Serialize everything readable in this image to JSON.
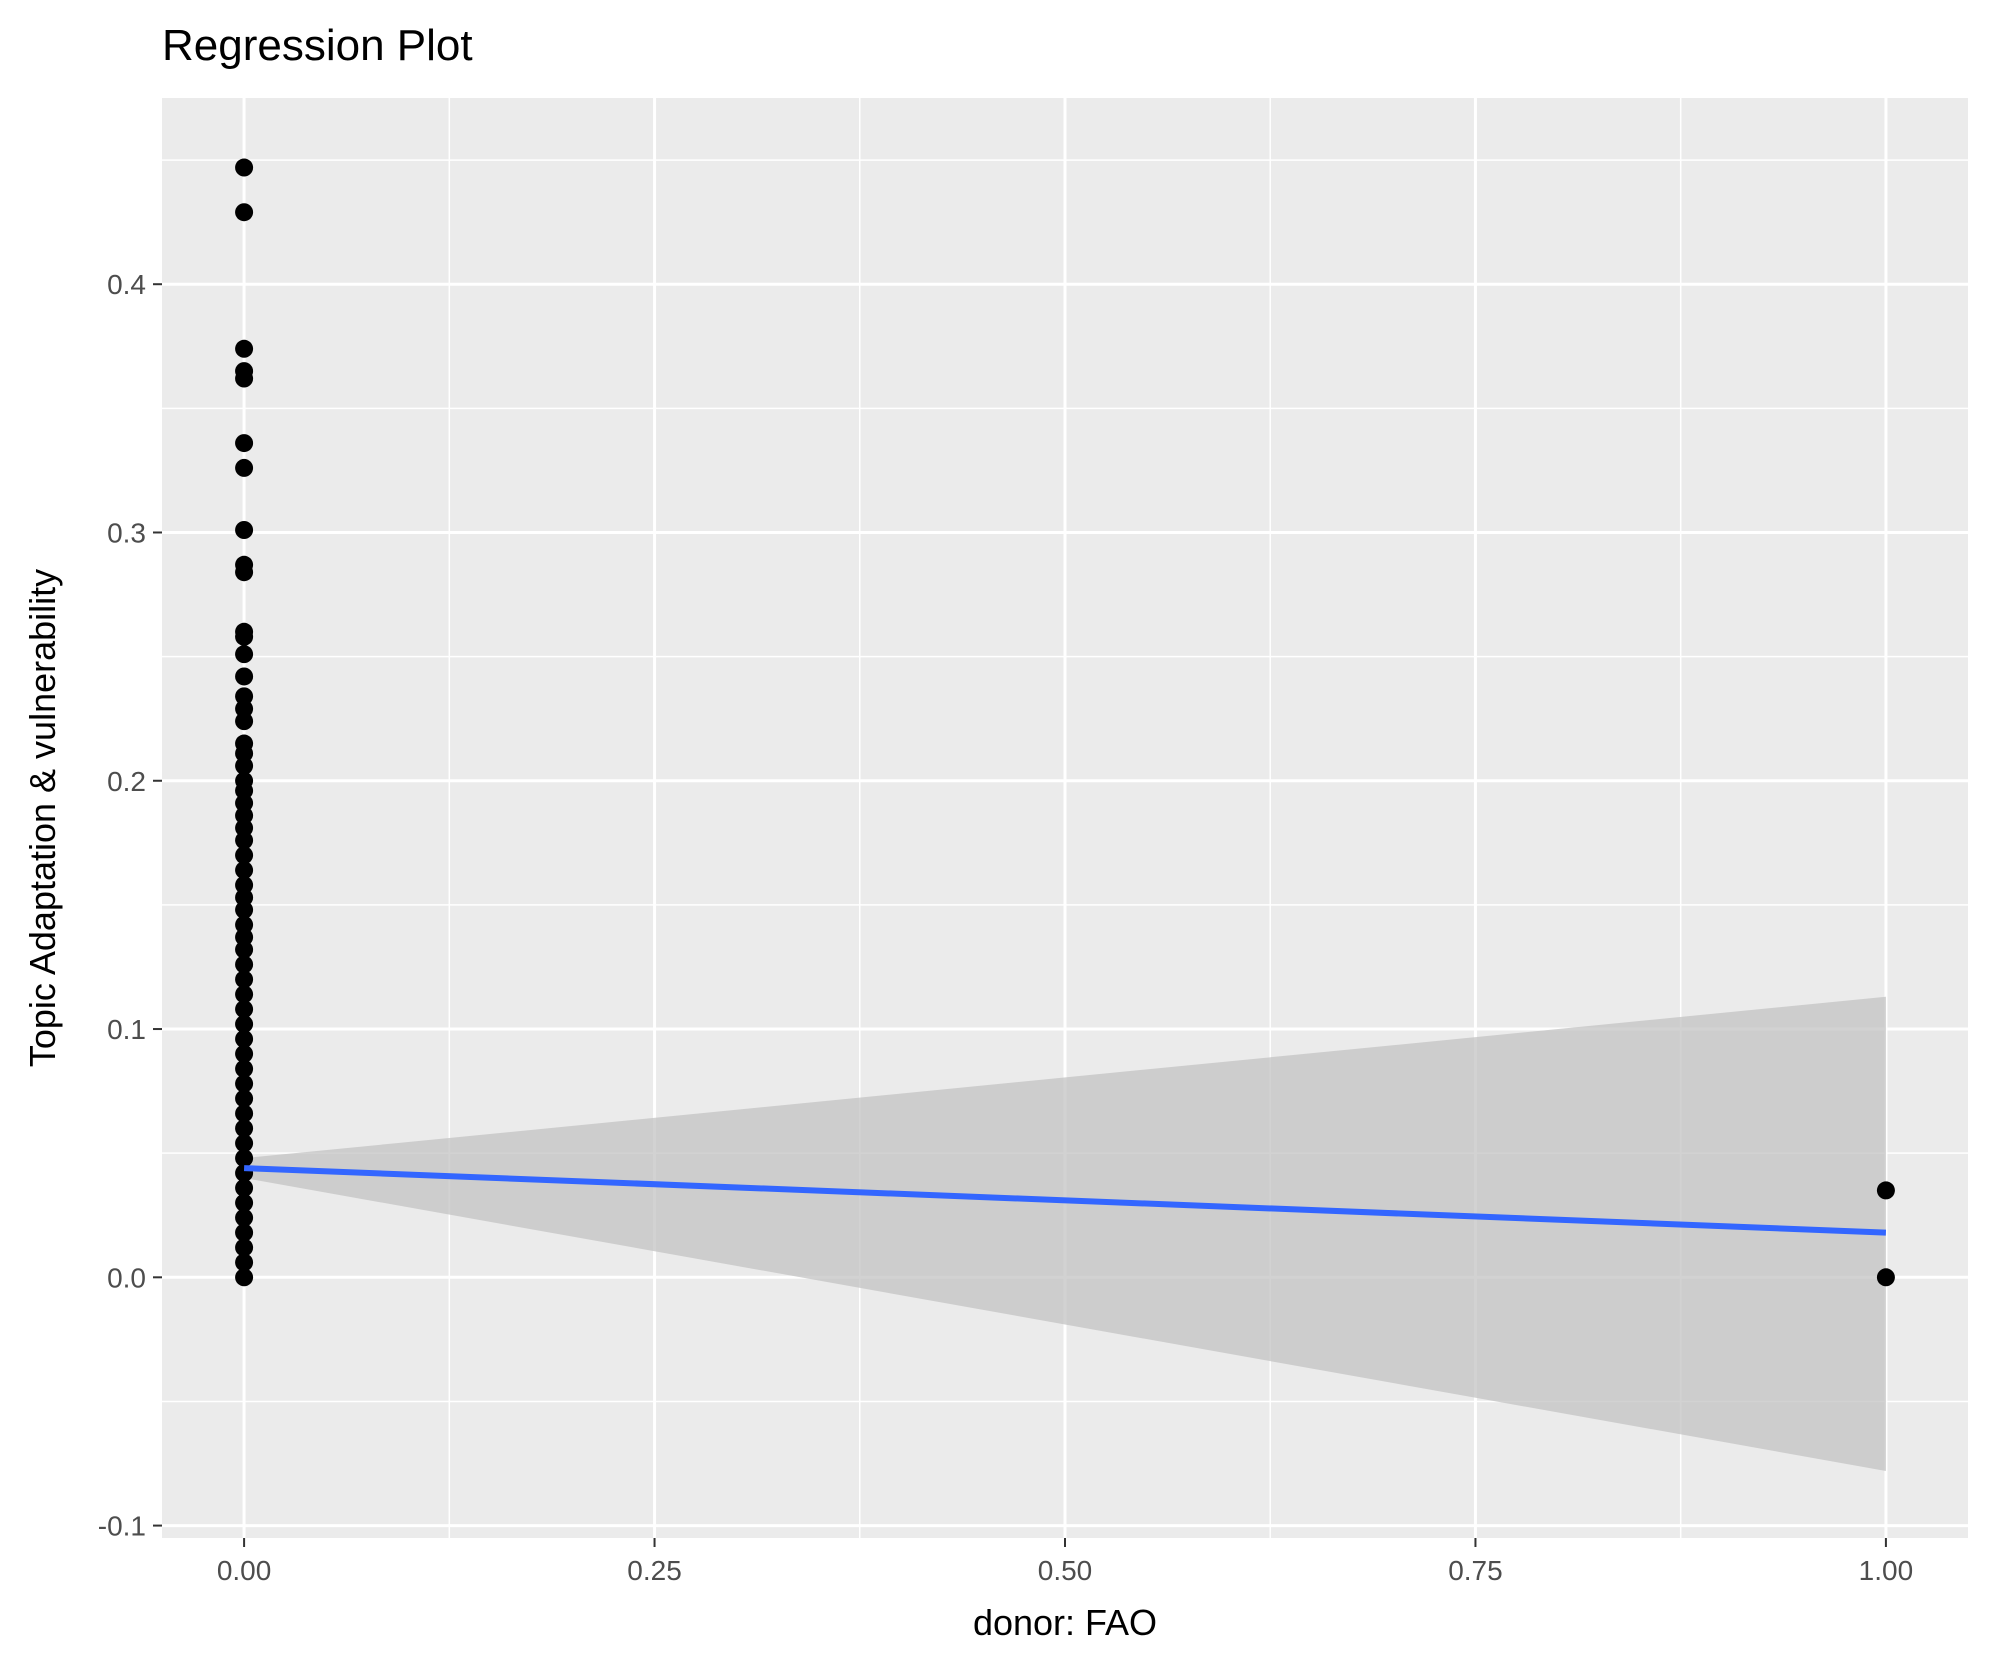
{
  "chart_data": {
    "type": "scatter",
    "title": "Regression Plot",
    "xlabel": "donor: FAO",
    "ylabel": "Topic Adaptation & vulnerability",
    "xlim": [
      -0.05,
      1.05
    ],
    "ylim": [
      -0.105,
      0.475
    ],
    "x_ticks": [
      0,
      0.25,
      0.5,
      0.75,
      1
    ],
    "x_tick_labels": [
      "0.00",
      "0.25",
      "0.50",
      "0.75",
      "1.00"
    ],
    "y_ticks": [
      -0.1,
      0,
      0.1,
      0.2,
      0.3,
      0.4
    ],
    "y_tick_labels": [
      "-0.1",
      "0.0",
      "0.1",
      "0.2",
      "0.3",
      "0.4"
    ],
    "grid": true,
    "legend": "none",
    "colors": {
      "panel": "#ebebeb",
      "grid": "#ffffff",
      "points": "#000000",
      "fit_line": "#3366ff",
      "ribbon": "#c3c3c3"
    },
    "points": [
      {
        "x": 0,
        "y": 0.447
      },
      {
        "x": 0,
        "y": 0.429
      },
      {
        "x": 0,
        "y": 0.374
      },
      {
        "x": 0,
        "y": 0.365
      },
      {
        "x": 0,
        "y": 0.362
      },
      {
        "x": 0,
        "y": 0.336
      },
      {
        "x": 0,
        "y": 0.326
      },
      {
        "x": 0,
        "y": 0.301
      },
      {
        "x": 0,
        "y": 0.287
      },
      {
        "x": 0,
        "y": 0.284
      },
      {
        "x": 0,
        "y": 0.26
      },
      {
        "x": 0,
        "y": 0.258
      },
      {
        "x": 0,
        "y": 0.251
      },
      {
        "x": 0,
        "y": 0.242
      },
      {
        "x": 0,
        "y": 0.234
      },
      {
        "x": 0,
        "y": 0.229
      },
      {
        "x": 0,
        "y": 0.224
      },
      {
        "x": 0,
        "y": 0.215
      },
      {
        "x": 0,
        "y": 0.211
      },
      {
        "x": 0,
        "y": 0.206
      },
      {
        "x": 0,
        "y": 0.2
      },
      {
        "x": 0,
        "y": 0.196
      },
      {
        "x": 0,
        "y": 0.191
      },
      {
        "x": 0,
        "y": 0.186
      },
      {
        "x": 0,
        "y": 0.181
      },
      {
        "x": 0,
        "y": 0.176
      },
      {
        "x": 0,
        "y": 0.17
      },
      {
        "x": 0,
        "y": 0.164
      },
      {
        "x": 0,
        "y": 0.158
      },
      {
        "x": 0,
        "y": 0.153
      },
      {
        "x": 0,
        "y": 0.148
      },
      {
        "x": 0,
        "y": 0.142
      },
      {
        "x": 0,
        "y": 0.137
      },
      {
        "x": 0,
        "y": 0.132
      },
      {
        "x": 0,
        "y": 0.126
      },
      {
        "x": 0,
        "y": 0.12
      },
      {
        "x": 0,
        "y": 0.114
      },
      {
        "x": 0,
        "y": 0.108
      },
      {
        "x": 0,
        "y": 0.102
      },
      {
        "x": 0,
        "y": 0.096
      },
      {
        "x": 0,
        "y": 0.09
      },
      {
        "x": 0,
        "y": 0.084
      },
      {
        "x": 0,
        "y": 0.078
      },
      {
        "x": 0,
        "y": 0.072
      },
      {
        "x": 0,
        "y": 0.066
      },
      {
        "x": 0,
        "y": 0.06
      },
      {
        "x": 0,
        "y": 0.054
      },
      {
        "x": 0,
        "y": 0.048
      },
      {
        "x": 0,
        "y": 0.042
      },
      {
        "x": 0,
        "y": 0.036
      },
      {
        "x": 0,
        "y": 0.03
      },
      {
        "x": 0,
        "y": 0.024
      },
      {
        "x": 0,
        "y": 0.018
      },
      {
        "x": 0,
        "y": 0.012
      },
      {
        "x": 0,
        "y": 0.006
      },
      {
        "x": 0,
        "y": 0.0
      },
      {
        "x": 1,
        "y": 0.035
      },
      {
        "x": 1,
        "y": 0.0
      }
    ],
    "fit": {
      "x": [
        0,
        1
      ],
      "y": [
        0.044,
        0.018
      ],
      "ci_lower": [
        0.04,
        -0.078
      ],
      "ci_upper": [
        0.048,
        0.113
      ]
    }
  }
}
